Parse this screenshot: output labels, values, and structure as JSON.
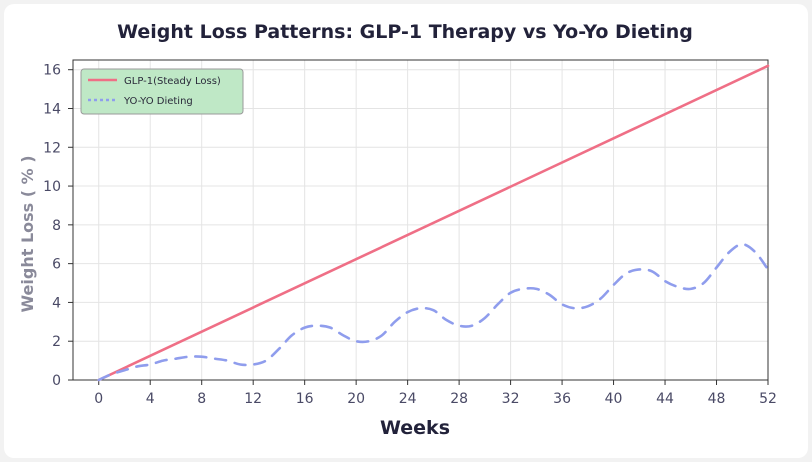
{
  "chart_data": {
    "type": "line",
    "title": "Weight Loss Patterns: GLP-1 Therapy vs Yo-Yo Dieting",
    "xlabel": "Weeks",
    "ylabel": "Weight Loss ( % )",
    "xlim": [
      -2,
      52
    ],
    "ylim": [
      0,
      16.5
    ],
    "x_ticks": [
      0,
      4,
      8,
      12,
      16,
      20,
      24,
      28,
      32,
      36,
      40,
      44,
      48,
      52
    ],
    "y_ticks": [
      0,
      2,
      4,
      6,
      8,
      10,
      12,
      14,
      16
    ],
    "grid": true,
    "legend_position": "top-left",
    "series": [
      {
        "name": "GLP-1(Steady Loss)",
        "color": "#ef6f86",
        "style": "solid",
        "x": [
          0,
          52
        ],
        "y": [
          0,
          16.2
        ]
      },
      {
        "name": "YO-YO Dieting",
        "color": "#8f9ded",
        "style": "dashed",
        "x": [
          0,
          1,
          2,
          3,
          4,
          5,
          6,
          7,
          8,
          9,
          10,
          11,
          12,
          13,
          14,
          15,
          16,
          17,
          18,
          19,
          20,
          21,
          22,
          23,
          24,
          25,
          26,
          27,
          28,
          29,
          30,
          31,
          32,
          33,
          34,
          35,
          36,
          37,
          38,
          39,
          40,
          41,
          42,
          43,
          44,
          45,
          46,
          47,
          48,
          49,
          50,
          51,
          52
        ],
        "y": [
          0.0,
          0.3,
          0.5,
          0.7,
          0.8,
          1.0,
          1.1,
          1.2,
          1.2,
          1.1,
          1.0,
          0.8,
          0.8,
          1.0,
          1.6,
          2.3,
          2.7,
          2.8,
          2.7,
          2.3,
          2.0,
          2.0,
          2.3,
          3.0,
          3.5,
          3.7,
          3.6,
          3.1,
          2.8,
          2.8,
          3.2,
          3.9,
          4.5,
          4.7,
          4.7,
          4.4,
          3.9,
          3.7,
          3.8,
          4.2,
          4.9,
          5.5,
          5.7,
          5.6,
          5.1,
          4.8,
          4.7,
          5.0,
          5.8,
          6.6,
          7.0,
          6.6,
          5.7
        ]
      }
    ]
  }
}
